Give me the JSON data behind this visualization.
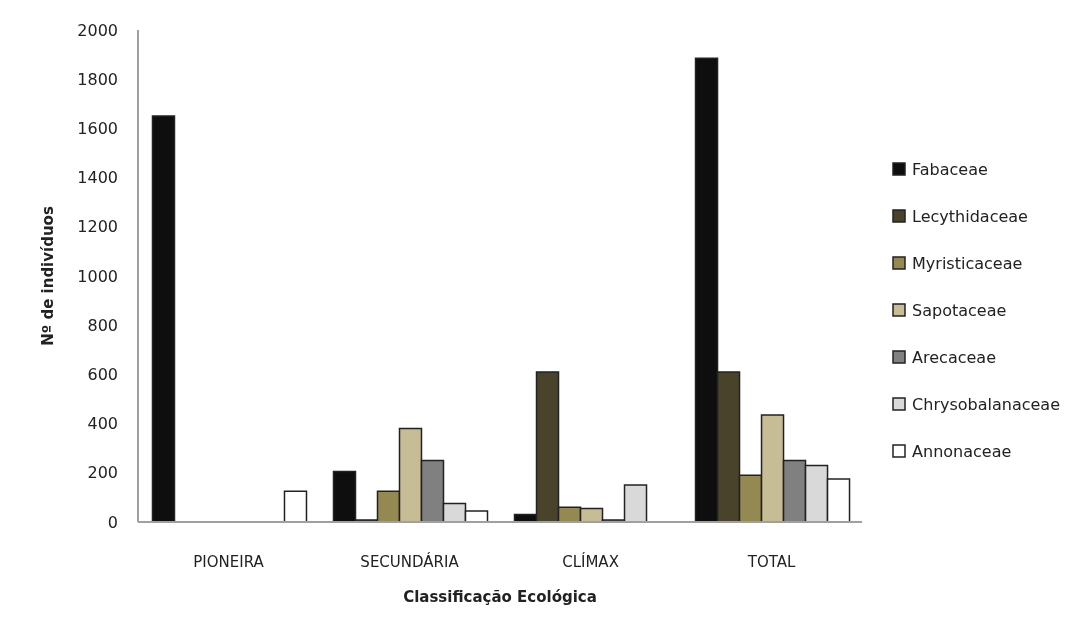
{
  "chart_data": {
    "type": "bar",
    "xlabel": "Classificação  Ecológica",
    "ylabel": "Nº de indivíduos",
    "categories": [
      "PIONEIRA",
      "SECUNDÁRIA",
      "CLÍMAX",
      "TOTAL"
    ],
    "series": [
      {
        "name": "Fabaceae",
        "color": "#0e0e0e",
        "values": [
          1650,
          205,
          30,
          1885
        ]
      },
      {
        "name": "Lecythidaceae",
        "color": "#4a432b",
        "values": [
          0,
          8,
          610,
          610
        ]
      },
      {
        "name": "Myristicaceae",
        "color": "#958953",
        "values": [
          0,
          125,
          60,
          190
        ]
      },
      {
        "name": "Sapotaceae",
        "color": "#c6bc96",
        "values": [
          0,
          380,
          55,
          435
        ]
      },
      {
        "name": "Arecaceae",
        "color": "#808080",
        "values": [
          0,
          250,
          8,
          250
        ]
      },
      {
        "name": "Chrysobalanaceae",
        "color": "#d9d9d9",
        "values": [
          0,
          75,
          150,
          230
        ]
      },
      {
        "name": "Annonaceae",
        "color": "#ffffff",
        "values": [
          125,
          45,
          0,
          175
        ]
      }
    ],
    "ylim": [
      0,
      2000
    ],
    "yticks": [
      0,
      200,
      400,
      600,
      800,
      1000,
      1200,
      1400,
      1600,
      1800,
      2000
    ],
    "grid": false,
    "legend": "right"
  }
}
